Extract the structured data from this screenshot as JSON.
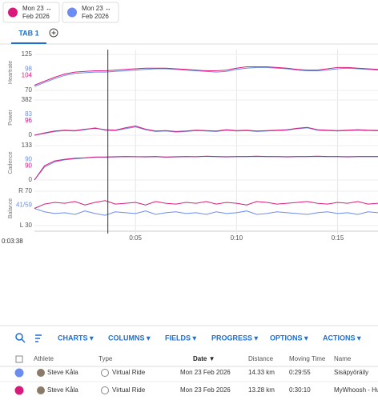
{
  "chips": [
    {
      "color": "#d81b7a",
      "line1": "Mon 23 ↔",
      "line2": "Feb 2026"
    },
    {
      "color": "#6b8cf0",
      "line1": "Mon 23 ↔",
      "line2": "Feb 2026"
    }
  ],
  "tabs": [
    {
      "label": "TAB 1"
    }
  ],
  "chart": {
    "x": [
      0,
      0.5,
      1,
      1.5,
      2,
      2.5,
      3,
      3.5,
      4,
      4.5,
      5,
      5.5,
      6,
      6.5,
      7,
      7.5,
      8,
      8.5,
      9,
      9.5,
      10,
      10.5,
      11,
      11.5,
      12,
      12.5,
      13,
      13.5,
      14,
      14.5,
      15,
      15.5,
      16,
      16.5,
      17
    ],
    "xlim": [
      0,
      17
    ],
    "xticks": [
      {
        "value": 5,
        "label": "0:05"
      },
      {
        "value": 10,
        "label": "0:10"
      },
      {
        "value": 15,
        "label": "0:15"
      }
    ],
    "cursor": {
      "value": 3.633,
      "label": "0:03:38"
    },
    "panels": [
      {
        "name": "Heartrate",
        "ylim": [
          70,
          125
        ],
        "yticks": [
          70,
          125
        ],
        "series": [
          {
            "color": "#6b8cf0",
            "cursor_value": 98,
            "values": [
              76,
              82,
              88,
              93,
              96,
              97,
              98,
              98,
              99,
              100,
              101,
              102,
              103,
              103,
              102,
              101,
              100,
              99,
              98,
              99,
              102,
              104,
              105,
              105,
              104,
              103,
              101,
              100,
              100,
              101,
              103,
              104,
              103,
              102,
              101
            ]
          },
          {
            "color": "#d81b7a",
            "cursor_value": 104,
            "values": [
              78,
              84,
              90,
              95,
              98,
              99,
              100,
              100,
              101,
              102,
              103,
              104,
              104,
              104,
              103,
              102,
              101,
              100,
              100,
              101,
              104,
              106,
              106,
              106,
              105,
              104,
              102,
              101,
              101,
              103,
              105,
              105,
              104,
              103,
              102
            ]
          }
        ]
      },
      {
        "name": "Power",
        "ylim": [
          0,
          382
        ],
        "yticks": [
          0,
          382
        ],
        "series": [
          {
            "color": "#6b8cf0",
            "cursor_value": 83,
            "values": [
              0,
              20,
              40,
              50,
              45,
              60,
              80,
              55,
              50,
              70,
              90,
              60,
              40,
              45,
              35,
              40,
              50,
              45,
              40,
              55,
              45,
              50,
              40,
              45,
              50,
              55,
              70,
              80,
              55,
              50,
              45,
              50,
              55,
              50,
              48
            ]
          },
          {
            "color": "#d81b7a",
            "cursor_value": 96,
            "values": [
              0,
              25,
              45,
              55,
              50,
              65,
              75,
              60,
              55,
              80,
              100,
              65,
              45,
              50,
              40,
              45,
              55,
              50,
              45,
              60,
              50,
              55,
              45,
              50,
              55,
              60,
              75,
              85,
              60,
              55,
              50,
              55,
              60,
              55,
              52
            ]
          }
        ]
      },
      {
        "name": "Cadence",
        "ylim": [
          0,
          133
        ],
        "yticks": [
          0,
          133
        ],
        "series": [
          {
            "color": "#6b8cf0",
            "cursor_value": 90,
            "values": [
              0,
              50,
              70,
              78,
              82,
              85,
              88,
              88,
              89,
              90,
              90,
              89,
              90,
              88,
              89,
              90,
              90,
              91,
              90,
              89,
              90,
              90,
              91,
              90,
              90,
              89,
              90,
              90,
              91,
              90,
              90,
              89,
              90,
              90,
              90
            ]
          },
          {
            "color": "#d81b7a",
            "cursor_value": 90,
            "values": [
              0,
              55,
              74,
              80,
              84,
              86,
              89,
              89,
              90,
              91,
              90,
              90,
              91,
              89,
              90,
              91,
              90,
              92,
              91,
              90,
              91,
              91,
              92,
              91,
              91,
              90,
              91,
              91,
              92,
              91,
              91,
              90,
              91,
              91,
              91
            ]
          }
        ]
      },
      {
        "name": "Balance",
        "ylim": [
          30,
          70
        ],
        "yticks": [
          {
            "value": 30,
            "label": "L 30"
          },
          {
            "value": 70,
            "label": "R 70"
          }
        ],
        "cursor_label": "41/59",
        "series": [
          {
            "color": "#6b8cf0",
            "values": [
              50,
              46,
              44,
              45,
              43,
              47,
              44,
              42,
              46,
              45,
              44,
              47,
              43,
              45,
              46,
              44,
              45,
              43,
              46,
              44,
              45,
              47,
              43,
              44,
              46,
              45,
              44,
              43,
              45,
              46,
              44,
              45,
              43,
              46,
              45
            ]
          },
          {
            "color": "#d81b7a",
            "values": [
              50,
              55,
              57,
              56,
              58,
              54,
              57,
              59,
              55,
              56,
              57,
              54,
              58,
              56,
              55,
              57,
              56,
              58,
              55,
              57,
              56,
              54,
              58,
              57,
              55,
              56,
              57,
              58,
              56,
              55,
              57,
              56,
              58,
              55,
              56
            ]
          }
        ]
      }
    ]
  },
  "toolbar": [
    "CHARTS ▾",
    "COLUMNS ▾",
    "FIELDS ▾",
    "PROGRESS ▾",
    "OPTIONS ▾",
    "ACTIONS ▾"
  ],
  "table": {
    "columns": [
      "Athlete",
      "Type",
      "Date ▼",
      "Distance",
      "Moving Time",
      "Name"
    ],
    "rows": [
      {
        "color": "#6b8cf0",
        "cells": [
          "Steve Kåla",
          "Virtual Ride",
          "Mon 23 Feb 2026",
          "14.33 km",
          "0:29:55",
          "Sisäpyöräily"
        ]
      },
      {
        "color": "#d81b7a",
        "cells": [
          "Steve Kåla",
          "Virtual Ride",
          "Mon 23 Feb 2026",
          "13.28 km",
          "0:30:10",
          "MyWhoosh - Hud"
        ]
      }
    ]
  }
}
